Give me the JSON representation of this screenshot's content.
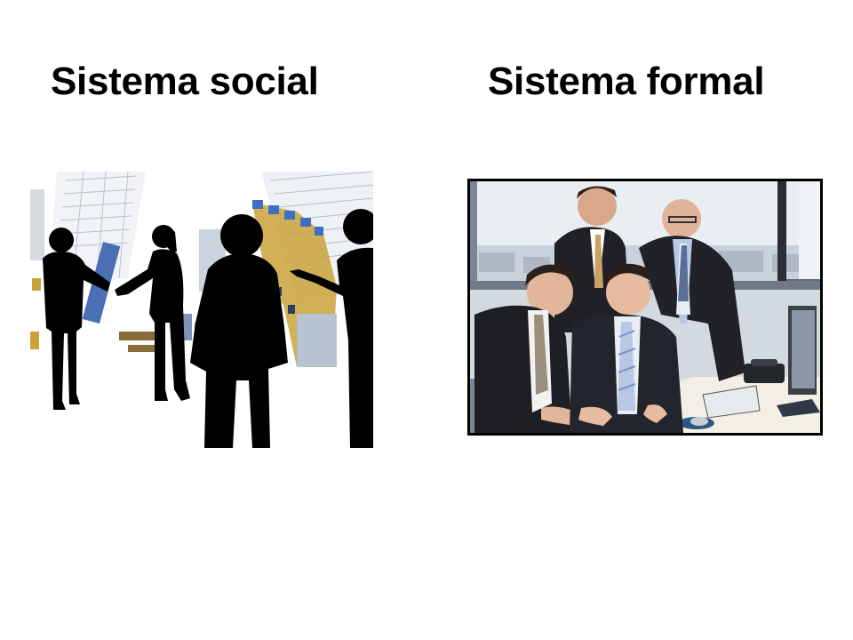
{
  "slide": {
    "left_title": "Sistema social",
    "right_title": "Sistema formal"
  },
  "images": {
    "left": {
      "icon": "business-silhouettes-image"
    },
    "right": {
      "icon": "office-team-photo"
    }
  },
  "colors": {
    "text": "#000000",
    "background": "#ffffff",
    "frame": "#000000",
    "sky": "#dfe7ee",
    "building_accent": "#c9a23a"
  }
}
